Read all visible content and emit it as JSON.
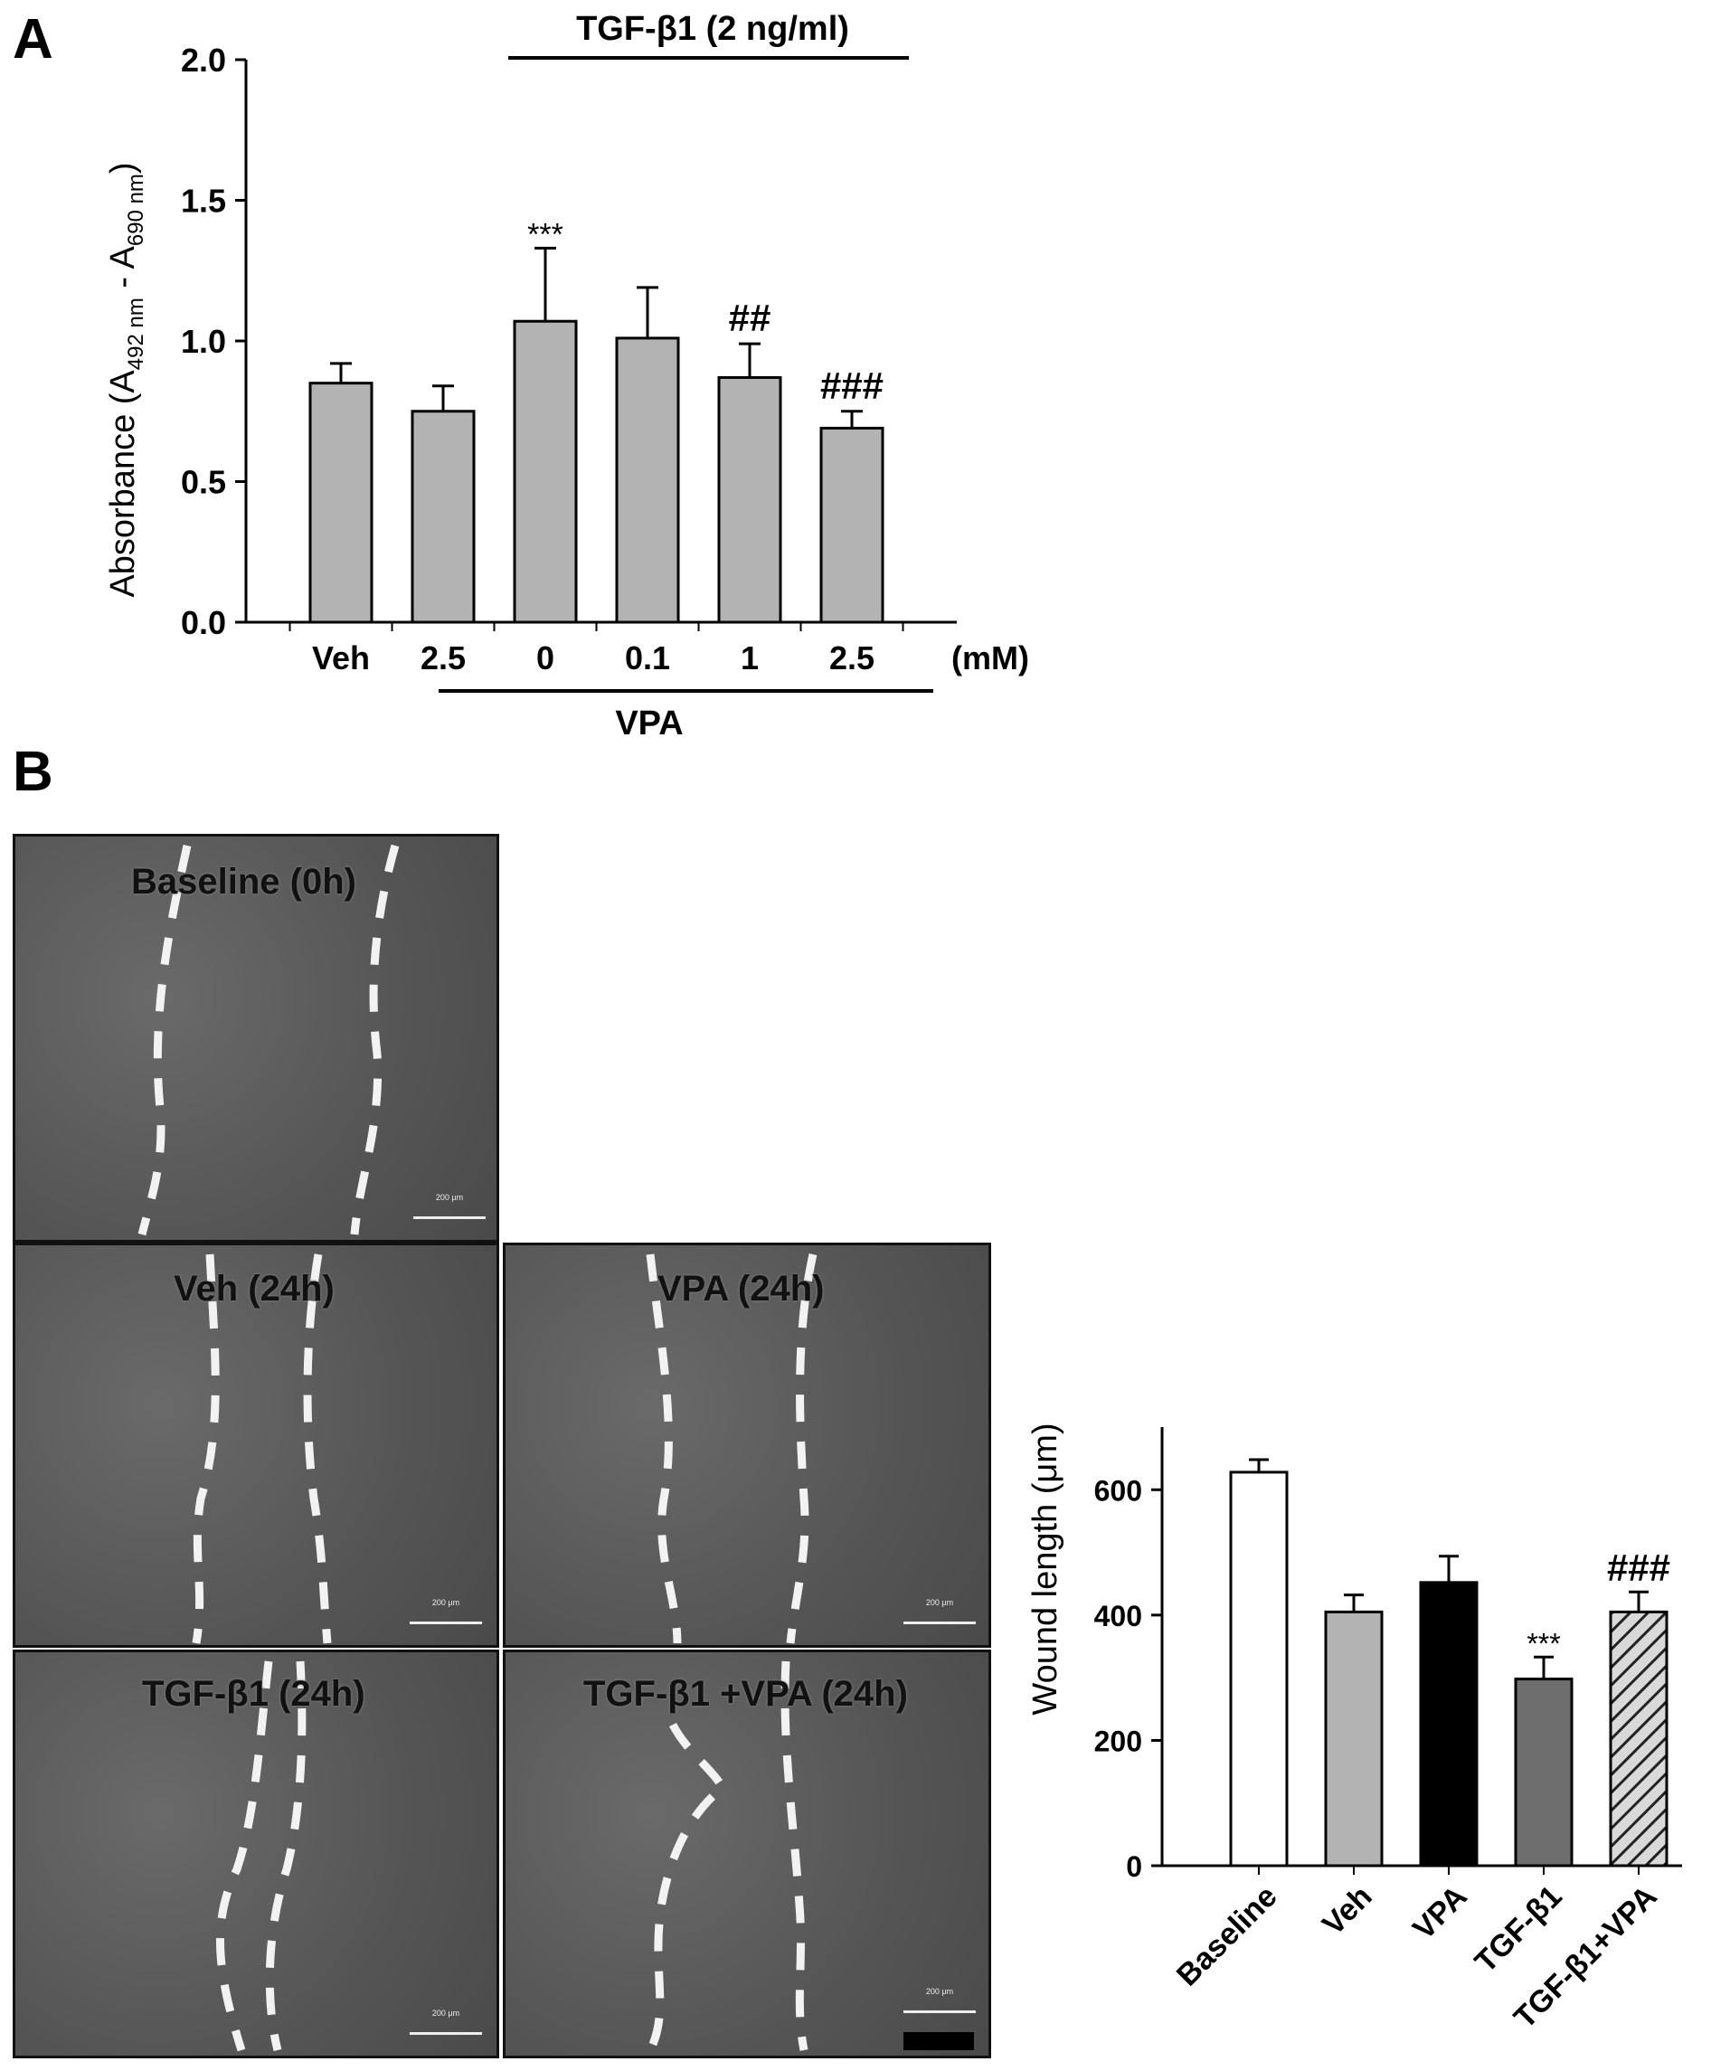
{
  "panel_labels": {
    "a": "A",
    "b": "B"
  },
  "chart_data": [
    {
      "type": "bar",
      "id": "absorbance",
      "title": "",
      "ylabel_prefix": "Absorbance (A",
      "ylabel_sub1": "492 nm",
      "ylabel_mid": " - A",
      "ylabel_sub2": "690 nm",
      "ylabel_suffix": ")",
      "ylim": [
        0,
        2.0
      ],
      "yticks": [
        "0.0",
        "0.5",
        "1.0",
        "1.5",
        "2.0"
      ],
      "yticks_values": [
        0,
        0.5,
        1.0,
        1.5,
        2.0
      ],
      "categories": [
        "Veh",
        "2.5",
        "0",
        "0.1",
        "1",
        "2.5"
      ],
      "unit_label": "(mM)",
      "values": [
        0.85,
        0.75,
        1.07,
        1.01,
        0.87,
        0.69
      ],
      "errors": [
        0.07,
        0.09,
        0.26,
        0.18,
        0.12,
        0.06
      ],
      "annotations": [
        "",
        "",
        "***",
        "",
        "##",
        "###"
      ],
      "top_bracket_label": "TGF-β1 (2 ng/ml)",
      "bottom_bracket_label": "VPA",
      "bar_color": "#b3b3b3"
    },
    {
      "type": "bar",
      "id": "wound_length",
      "ylabel": "Wound length (μm)",
      "ylim": [
        0,
        700
      ],
      "yticks": [
        "0",
        "200",
        "400",
        "600"
      ],
      "yticks_values": [
        0,
        200,
        400,
        600
      ],
      "categories": [
        "Baseline",
        "Veh",
        "VPA",
        "TGF-β1",
        "TGF-β1+VPA"
      ],
      "values": [
        628,
        405,
        452,
        298,
        405
      ],
      "errors": [
        20,
        27,
        42,
        35,
        32
      ],
      "annotations": [
        "",
        "",
        "",
        "***",
        "###"
      ],
      "colors": [
        "#ffffff",
        "#b3b3b3",
        "#000000",
        "#6e6e6e",
        "hatched"
      ]
    }
  ],
  "micrographs": [
    {
      "label": "Baseline (0h)",
      "scale": "200 μm"
    },
    {
      "label": "Veh (24h)",
      "scale": "200 μm"
    },
    {
      "label": "VPA  (24h)",
      "scale": "200 μm"
    },
    {
      "label": "TGF-β1 (24h)",
      "scale": "200 μm"
    },
    {
      "label": "TGF-β1 +VPA (24h)",
      "scale": "200 μm"
    }
  ]
}
